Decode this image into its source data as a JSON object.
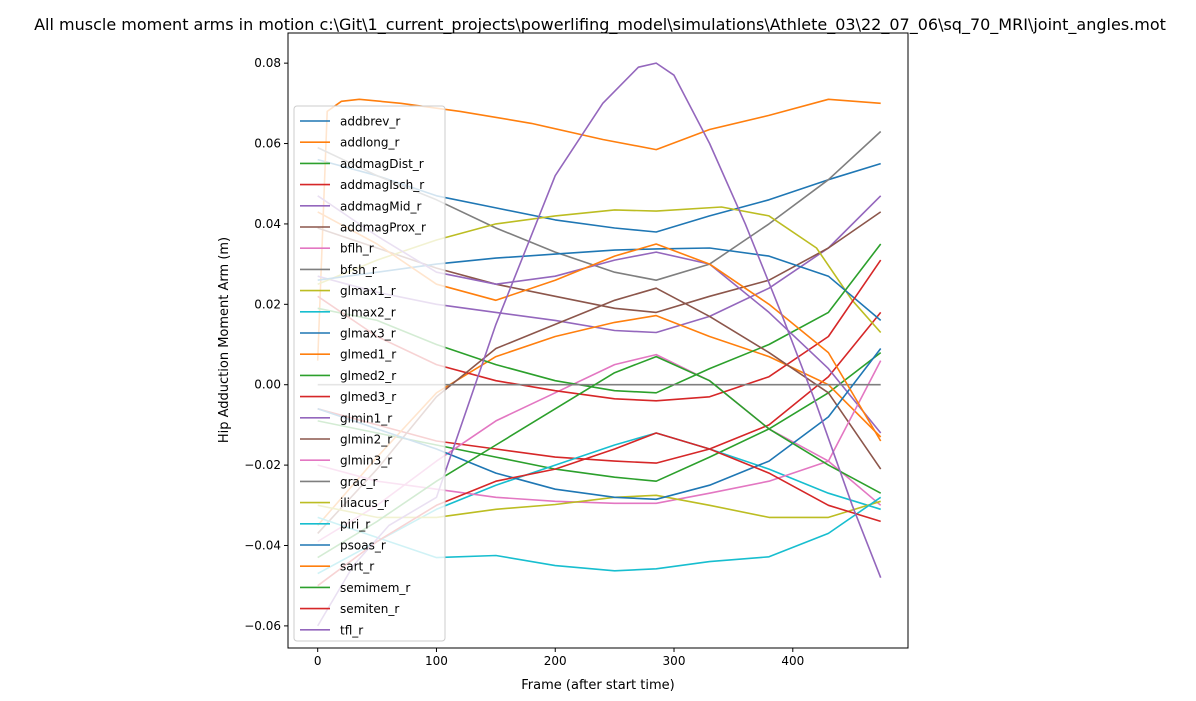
{
  "chart_data": {
    "type": "line",
    "title": "All muscle moment arms in motion c:\\Git\\1_current_projects\\powerlifing_model\\simulations\\Athlete_03\\22_07_06\\sq_70_MRI\\joint_angles.mot",
    "xlabel": "Frame (after start time)",
    "ylabel": "Hip Adduction Moment Arm (m)",
    "xlim": [
      -25,
      497
    ],
    "ylim": [
      -0.0655,
      0.0875
    ],
    "xticks": [
      0,
      100,
      200,
      300,
      400
    ],
    "yticks": [
      -0.06,
      -0.04,
      -0.02,
      0.0,
      0.02,
      0.04,
      0.06,
      0.08
    ],
    "ytick_labels": [
      "−0.06",
      "−0.04",
      "−0.02",
      "0.00",
      "0.02",
      "0.04",
      "0.06",
      "0.08"
    ],
    "grid": false,
    "legend_position": "left",
    "series": [
      {
        "name": "addbrev_r",
        "color": "#1f77b4",
        "x": [
          0,
          50,
          100,
          150,
          200,
          250,
          285,
          330,
          380,
          430,
          474
        ],
        "y": [
          0.056,
          0.052,
          0.047,
          0.044,
          0.041,
          0.039,
          0.038,
          0.042,
          0.046,
          0.051,
          0.055
        ]
      },
      {
        "name": "addlong_r",
        "color": "#ff7f0e",
        "x": [
          0,
          8,
          20,
          35,
          70,
          120,
          180,
          240,
          285,
          330,
          380,
          430,
          474
        ],
        "y": [
          0.006,
          0.068,
          0.0705,
          0.071,
          0.07,
          0.068,
          0.065,
          0.061,
          0.0585,
          0.0635,
          0.067,
          0.071,
          0.07
        ]
      },
      {
        "name": "addmagDist_r",
        "color": "#2ca02c",
        "x": [
          0,
          50,
          100,
          150,
          200,
          250,
          285,
          330,
          380,
          430,
          474
        ],
        "y": [
          -0.009,
          -0.012,
          -0.015,
          -0.018,
          -0.021,
          -0.023,
          -0.024,
          -0.018,
          -0.011,
          -0.002,
          0.008
        ]
      },
      {
        "name": "addmagIsch_r",
        "color": "#d62728",
        "x": [
          0,
          50,
          100,
          150,
          200,
          250,
          285,
          330,
          380,
          430,
          474
        ],
        "y": [
          -0.006,
          -0.01,
          -0.014,
          -0.016,
          -0.018,
          -0.019,
          -0.0195,
          -0.016,
          -0.01,
          0.002,
          0.018
        ]
      },
      {
        "name": "addmagMid_r",
        "color": "#9467bd",
        "x": [
          0,
          50,
          100,
          150,
          200,
          250,
          285,
          330,
          380,
          430,
          474
        ],
        "y": [
          0.027,
          0.023,
          0.02,
          0.018,
          0.016,
          0.0135,
          0.013,
          0.017,
          0.024,
          0.034,
          0.047
        ]
      },
      {
        "name": "addmagProx_r",
        "color": "#8c564b",
        "x": [
          0,
          50,
          100,
          150,
          200,
          250,
          285,
          330,
          380,
          430,
          474
        ],
        "y": [
          0.039,
          0.034,
          0.029,
          0.025,
          0.022,
          0.019,
          0.018,
          0.022,
          0.026,
          0.034,
          0.043
        ]
      },
      {
        "name": "bflh_r",
        "color": "#e377c2",
        "x": [
          0,
          50,
          100,
          150,
          200,
          250,
          285,
          330,
          380,
          430,
          474
        ],
        "y": [
          -0.039,
          -0.03,
          -0.019,
          -0.009,
          -0.002,
          0.005,
          0.0075,
          0.001,
          -0.011,
          -0.019,
          -0.03
        ]
      },
      {
        "name": "bfsh_r",
        "color": "#7f7f7f",
        "x": [
          0,
          50,
          100,
          150,
          200,
          250,
          285,
          330,
          380,
          430,
          474
        ],
        "y": [
          0.059,
          0.052,
          0.046,
          0.039,
          0.033,
          0.028,
          0.026,
          0.03,
          0.04,
          0.051,
          0.063
        ]
      },
      {
        "name": "glmax1_r",
        "color": "#bcbd22",
        "x": [
          0,
          50,
          100,
          150,
          200,
          250,
          285,
          340,
          380,
          420,
          450,
          474
        ],
        "y": [
          0.025,
          0.031,
          0.036,
          0.04,
          0.042,
          0.0435,
          0.0432,
          0.0442,
          0.042,
          0.034,
          0.021,
          0.013
        ]
      },
      {
        "name": "glmax2_r",
        "color": "#17becf",
        "x": [
          0,
          50,
          100,
          150,
          200,
          250,
          285,
          330,
          380,
          430,
          474
        ],
        "y": [
          -0.047,
          -0.039,
          -0.031,
          -0.025,
          -0.02,
          -0.015,
          -0.012,
          -0.016,
          -0.021,
          -0.027,
          -0.031
        ]
      },
      {
        "name": "glmax3_r",
        "color": "#1f77b4",
        "x": [
          0,
          50,
          100,
          150,
          200,
          250,
          285,
          330,
          380,
          430,
          474
        ],
        "y": [
          0.026,
          0.028,
          0.03,
          0.0315,
          0.0325,
          0.0335,
          0.0338,
          0.034,
          0.032,
          0.027,
          0.016
        ]
      },
      {
        "name": "glmed1_r",
        "color": "#ff7f0e",
        "x": [
          0,
          50,
          100,
          150,
          200,
          250,
          285,
          330,
          380,
          430,
          474
        ],
        "y": [
          -0.035,
          -0.018,
          -0.002,
          0.007,
          0.012,
          0.0155,
          0.0172,
          0.012,
          0.007,
          0.0,
          -0.013
        ]
      },
      {
        "name": "glmed2_r",
        "color": "#2ca02c",
        "x": [
          0,
          50,
          100,
          150,
          200,
          250,
          285,
          330,
          380,
          430,
          474
        ],
        "y": [
          0.019,
          0.016,
          0.01,
          0.005,
          0.001,
          -0.0015,
          -0.002,
          0.004,
          0.01,
          0.018,
          0.035
        ]
      },
      {
        "name": "glmed3_r",
        "color": "#d62728",
        "x": [
          0,
          50,
          100,
          150,
          200,
          250,
          285,
          330,
          380,
          430,
          474
        ],
        "y": [
          0.022,
          0.012,
          0.005,
          0.001,
          -0.0015,
          -0.0035,
          -0.004,
          -0.003,
          0.002,
          0.012,
          0.031
        ]
      },
      {
        "name": "glmin1_r",
        "color": "#9467bd",
        "x": [
          0,
          50,
          100,
          150,
          200,
          250,
          285,
          330,
          380,
          430,
          474
        ],
        "y": [
          0.047,
          0.037,
          0.028,
          0.025,
          0.027,
          0.031,
          0.033,
          0.03,
          0.018,
          0.004,
          -0.012
        ]
      },
      {
        "name": "glmin2_r",
        "color": "#8c564b",
        "x": [
          0,
          50,
          100,
          150,
          200,
          250,
          285,
          330,
          380,
          430,
          474
        ],
        "y": [
          -0.037,
          -0.021,
          -0.003,
          0.009,
          0.015,
          0.021,
          0.024,
          0.017,
          0.008,
          -0.002,
          -0.021
        ]
      },
      {
        "name": "glmin3_r",
        "color": "#e377c2",
        "x": [
          0,
          50,
          100,
          150,
          200,
          250,
          285,
          330,
          380,
          430,
          474
        ],
        "y": [
          -0.02,
          -0.024,
          -0.026,
          -0.028,
          -0.029,
          -0.0295,
          -0.0295,
          -0.027,
          -0.024,
          -0.019,
          0.006
        ]
      },
      {
        "name": "grac_r",
        "color": "#7f7f7f",
        "x": [
          0,
          474
        ],
        "y": [
          0.0,
          0.0
        ]
      },
      {
        "name": "iliacus_r",
        "color": "#bcbd22",
        "x": [
          0,
          50,
          100,
          150,
          200,
          250,
          285,
          330,
          380,
          430,
          474
        ],
        "y": [
          -0.03,
          -0.033,
          -0.033,
          -0.031,
          -0.0298,
          -0.028,
          -0.0275,
          -0.03,
          -0.033,
          -0.033,
          -0.029
        ]
      },
      {
        "name": "piri_r",
        "color": "#17becf",
        "x": [
          0,
          50,
          100,
          150,
          200,
          250,
          285,
          330,
          380,
          430,
          474
        ],
        "y": [
          -0.033,
          -0.038,
          -0.043,
          -0.0425,
          -0.045,
          -0.0463,
          -0.0458,
          -0.044,
          -0.0428,
          -0.037,
          -0.028
        ]
      },
      {
        "name": "psoas_r",
        "color": "#1f77b4",
        "x": [
          0,
          50,
          100,
          150,
          200,
          250,
          285,
          330,
          380,
          430,
          474
        ],
        "y": [
          -0.006,
          -0.011,
          -0.016,
          -0.022,
          -0.026,
          -0.028,
          -0.0285,
          -0.025,
          -0.019,
          -0.008,
          0.009
        ]
      },
      {
        "name": "sart_r",
        "color": "#ff7f0e",
        "x": [
          0,
          50,
          100,
          150,
          200,
          250,
          285,
          330,
          380,
          430,
          474
        ],
        "y": [
          0.043,
          0.035,
          0.025,
          0.021,
          0.026,
          0.032,
          0.035,
          0.03,
          0.02,
          0.008,
          -0.014
        ]
      },
      {
        "name": "semimem_r",
        "color": "#2ca02c",
        "x": [
          0,
          50,
          100,
          150,
          200,
          250,
          285,
          330,
          380,
          430,
          474
        ],
        "y": [
          -0.043,
          -0.034,
          -0.024,
          -0.015,
          -0.006,
          0.003,
          0.007,
          0.001,
          -0.011,
          -0.02,
          -0.027
        ]
      },
      {
        "name": "semiten_r",
        "color": "#d62728",
        "x": [
          0,
          50,
          100,
          150,
          200,
          250,
          285,
          330,
          380,
          430,
          474
        ],
        "y": [
          -0.05,
          -0.039,
          -0.03,
          -0.024,
          -0.021,
          -0.016,
          -0.012,
          -0.016,
          -0.022,
          -0.03,
          -0.034
        ]
      },
      {
        "name": "tfl_r",
        "color": "#9467bd",
        "x": [
          0,
          30,
          60,
          100,
          150,
          200,
          240,
          270,
          285,
          300,
          330,
          360,
          390,
          420,
          450,
          474
        ],
        "y": [
          -0.06,
          -0.045,
          -0.035,
          -0.028,
          0.015,
          0.052,
          0.07,
          0.079,
          0.08,
          0.077,
          0.06,
          0.04,
          0.018,
          -0.005,
          -0.03,
          -0.048
        ]
      }
    ]
  }
}
